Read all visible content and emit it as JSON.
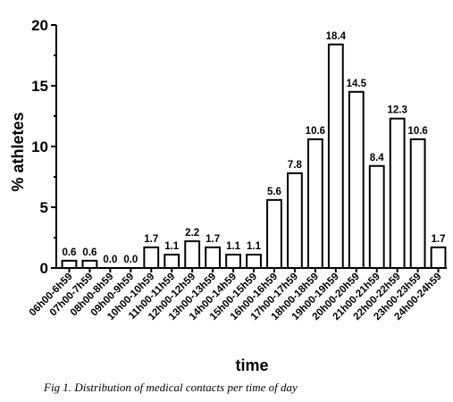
{
  "chart_data": {
    "type": "bar",
    "categories": [
      "06h00-6h59",
      "07h00-7h59",
      "08h00-8h59",
      "09h00-9h59",
      "10h00-10h59",
      "11h00-11h59",
      "12h00-12h59",
      "13h00-13h59",
      "14h00-14h59",
      "15h00-15h59",
      "16h00-16h59",
      "17h00-17h59",
      "18h00-18h59",
      "19h00-19h59",
      "20h00-20h59",
      "21h00-21h59",
      "22h00-22h59",
      "23h00-23h59",
      "24h00-24h59"
    ],
    "values": [
      0.6,
      0.6,
      0.0,
      0.0,
      1.7,
      1.1,
      2.2,
      1.7,
      1.1,
      1.1,
      5.6,
      7.8,
      10.6,
      18.4,
      14.5,
      8.4,
      12.3,
      10.6,
      1.7
    ],
    "data_labels": [
      "0.6",
      "0.6",
      "0.0",
      "0.0",
      "1.7",
      "1.1",
      "2.2",
      "1.7",
      "1.1",
      "1.1",
      "5.6",
      "7.8",
      "10.6",
      "18.4",
      "14.5",
      "8.4",
      "12.3",
      "10.6",
      "1.7"
    ],
    "ylabel": "% athletes",
    "xlabel": "time",
    "ylim": [
      0,
      20
    ],
    "yticks": [
      "0",
      "5",
      "10",
      "15",
      "20"
    ],
    "grid": false
  },
  "caption": {
    "prefix": "Fig 1.",
    "text": " Distribution of medical contacts per time of day"
  }
}
